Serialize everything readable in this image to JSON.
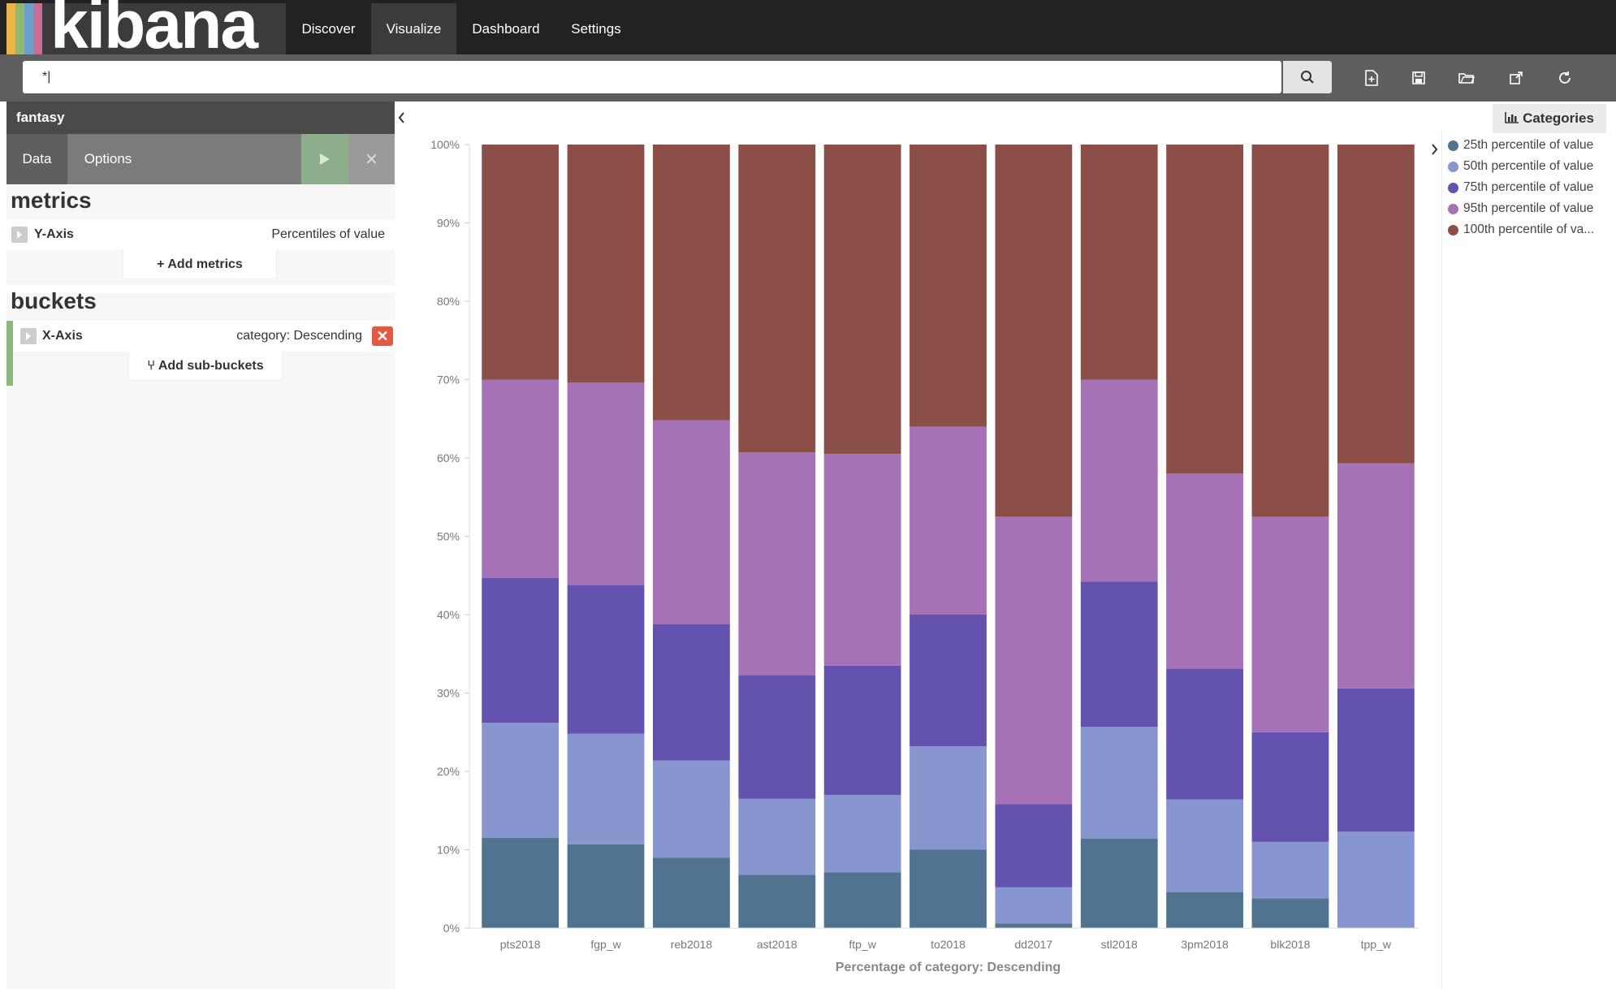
{
  "app": {
    "logo_text": "kibana"
  },
  "nav": {
    "items": [
      {
        "label": "Discover",
        "active": false
      },
      {
        "label": "Visualize",
        "active": true
      },
      {
        "label": "Dashboard",
        "active": false
      },
      {
        "label": "Settings",
        "active": false
      }
    ]
  },
  "search": {
    "value": "*|"
  },
  "toolbar": {
    "icons": [
      "new-visualization-icon",
      "save-icon",
      "open-icon",
      "share-icon",
      "refresh-icon"
    ]
  },
  "sidebar": {
    "index_pattern": "fantasy",
    "tabs": [
      {
        "label": "Data",
        "active": true
      },
      {
        "label": "Options",
        "active": false
      }
    ],
    "metrics": {
      "title": "metrics",
      "rows": [
        {
          "name": "Y-Axis",
          "description": "Percentiles of value"
        }
      ],
      "add_label": "Add metrics"
    },
    "buckets": {
      "title": "buckets",
      "rows": [
        {
          "name": "X-Axis",
          "description": "category: Descending"
        }
      ],
      "add_label": "Add sub-buckets"
    }
  },
  "legend": {
    "title": "Categories",
    "items": [
      {
        "label": "25th percentile of value",
        "color": "#50748f"
      },
      {
        "label": "50th percentile of value",
        "color": "#8896cf"
      },
      {
        "label": "75th percentile of value",
        "color": "#6353ae"
      },
      {
        "label": "95th percentile of value",
        "color": "#a572b6"
      },
      {
        "label": "100th percentile of va...",
        "color": "#8c4f47"
      }
    ]
  },
  "chart_data": {
    "type": "bar",
    "stacked": true,
    "normalized": true,
    "xlabel": "Percentage of category: Descending",
    "ylabel": "",
    "ylim": [
      0,
      100
    ],
    "yticks": [
      "0%",
      "10%",
      "20%",
      "30%",
      "40%",
      "50%",
      "60%",
      "70%",
      "80%",
      "90%",
      "100%"
    ],
    "categories": [
      "pts2018",
      "fgp_w",
      "reb2018",
      "ast2018",
      "ftp_w",
      "to2018",
      "dd2017",
      "stl2018",
      "3pm2018",
      "blk2018",
      "tpp_w"
    ],
    "series": [
      {
        "name": "25th percentile of value",
        "color": "#50748f",
        "values": [
          11.5,
          10.7,
          9.0,
          6.8,
          7.1,
          10.0,
          0.6,
          11.4,
          4.6,
          3.8,
          0.0
        ]
      },
      {
        "name": "50th percentile of value",
        "color": "#8896cf",
        "values": [
          14.7,
          14.1,
          12.4,
          9.7,
          9.9,
          13.2,
          4.6,
          14.3,
          11.8,
          7.2,
          12.3
        ]
      },
      {
        "name": "75th percentile of value",
        "color": "#6353ae",
        "values": [
          18.5,
          19.0,
          17.4,
          15.8,
          16.5,
          16.8,
          10.6,
          18.5,
          16.7,
          14.0,
          18.3
        ]
      },
      {
        "name": "95th percentile of value",
        "color": "#a572b6",
        "values": [
          25.3,
          25.8,
          26.0,
          28.4,
          27.0,
          24.0,
          36.7,
          25.8,
          24.9,
          27.5,
          28.7
        ]
      },
      {
        "name": "100th percentile of value",
        "color": "#8c4f47",
        "values": [
          30.0,
          30.4,
          35.2,
          39.3,
          39.5,
          36.0,
          47.5,
          30.0,
          42.0,
          47.5,
          40.7
        ]
      }
    ]
  }
}
